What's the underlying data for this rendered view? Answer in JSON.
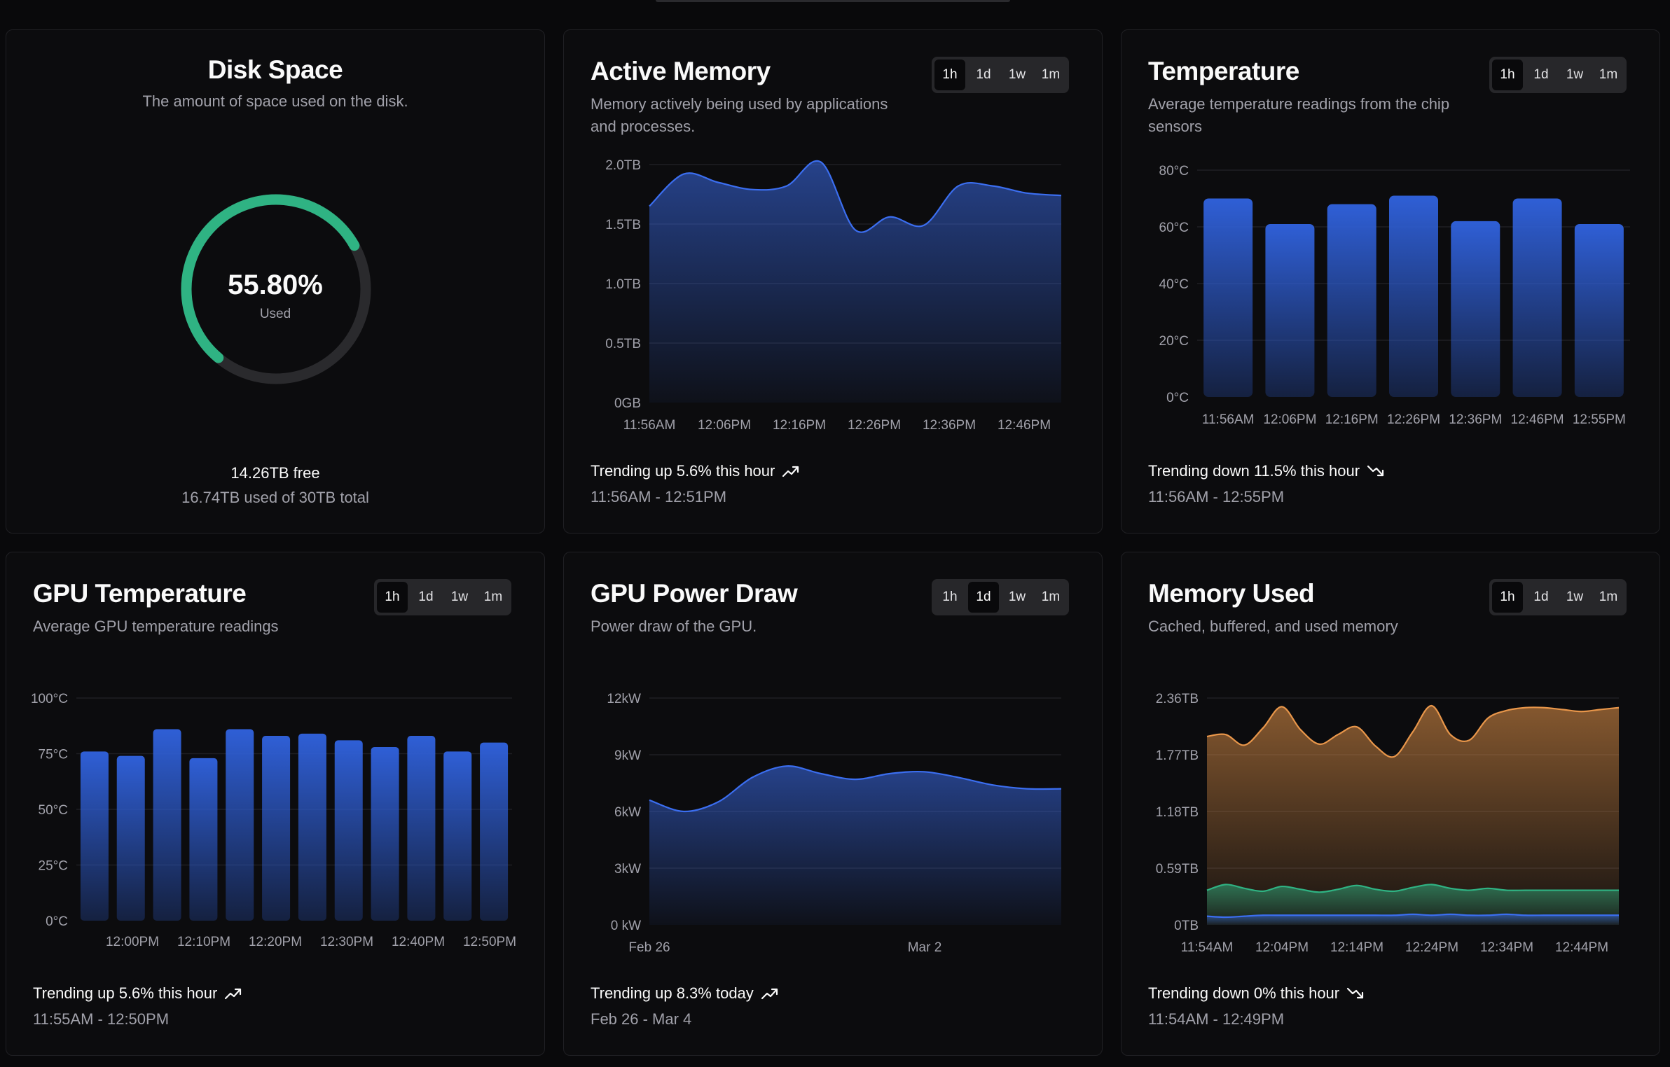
{
  "ranges": [
    "1h",
    "1d",
    "1w",
    "1m"
  ],
  "disk": {
    "title": "Disk Space",
    "description": "The amount of space used on the disk.",
    "percent_label": "55.80%",
    "percent_value": 55.8,
    "used_label": "Used",
    "free_label": "14.26TB free",
    "used_total_label": "16.74TB used of 30TB total",
    "colors": {
      "used": "#2fb383",
      "track": "#2a2a2d"
    }
  },
  "active_memory": {
    "title": "Active Memory",
    "description_lines": [
      "Memory actively being used by applications",
      "and processes."
    ],
    "active_range": "1h",
    "trend": "Trending up 5.6% this hour",
    "trend_icon": "trending-up-icon",
    "range_text": "11:56AM - 12:51PM"
  },
  "temperature": {
    "title": "Temperature",
    "description_lines": [
      "Average temperature readings from the chip",
      "sensors"
    ],
    "active_range": "1h",
    "trend": "Trending down 11.5% this hour",
    "trend_icon": "trending-down-icon",
    "range_text": "11:56AM - 12:55PM"
  },
  "gpu_temperature": {
    "title": "GPU Temperature",
    "description_lines": [
      "Average GPU temperature readings"
    ],
    "active_range": "1h",
    "trend": "Trending up 5.6% this hour",
    "trend_icon": "trending-up-icon",
    "range_text": "11:55AM - 12:50PM"
  },
  "gpu_power": {
    "title": "GPU Power Draw",
    "description_lines": [
      "Power draw of the GPU."
    ],
    "active_range": "1d",
    "trend": "Trending up 8.3% today",
    "trend_icon": "trending-up-icon",
    "range_text": "Feb 26 - Mar 4"
  },
  "memory_used": {
    "title": "Memory Used",
    "description_lines": [
      "Cached, buffered, and used memory"
    ],
    "active_range": "1h",
    "trend": "Trending down 0% this hour",
    "trend_icon": "trending-down-icon",
    "range_text": "11:54AM - 12:49PM"
  },
  "colors": {
    "blue": "#2f5fd6",
    "blue_line": "#3b6ef0",
    "orange": "#e8964a",
    "green": "#2fb383",
    "grid": "#1f1f23"
  },
  "chart_data": [
    {
      "id": "active_memory",
      "type": "area",
      "y_ticks": [
        "0GB",
        "0.5TB",
        "1.0TB",
        "1.5TB",
        "2.0TB"
      ],
      "ylim": [
        0,
        2.0
      ],
      "x_ticks": [
        "11:56AM",
        "12:06PM",
        "12:16PM",
        "12:26PM",
        "12:36PM",
        "12:46PM"
      ],
      "x": [
        0,
        1,
        2,
        3,
        4,
        5,
        6,
        7,
        8,
        9,
        10,
        11,
        12
      ],
      "values": [
        1.65,
        1.92,
        1.85,
        1.79,
        1.82,
        2.02,
        1.45,
        1.56,
        1.49,
        1.82,
        1.82,
        1.76,
        1.74
      ],
      "xlim": [
        0,
        12
      ]
    },
    {
      "id": "temperature",
      "type": "bar",
      "y_ticks": [
        "0°C",
        "20°C",
        "40°C",
        "60°C",
        "80°C"
      ],
      "ylim": [
        0,
        80
      ],
      "categories": [
        "11:56AM",
        "12:06PM",
        "12:16PM",
        "12:26PM",
        "12:36PM",
        "12:46PM",
        "12:55PM"
      ],
      "values": [
        70,
        61,
        68,
        71,
        62,
        70,
        61
      ]
    },
    {
      "id": "gpu_temperature",
      "type": "bar",
      "y_ticks": [
        "0°C",
        "25°C",
        "50°C",
        "75°C",
        "100°C"
      ],
      "ylim": [
        0,
        100
      ],
      "x_ticks": [
        "12:00PM",
        "12:10PM",
        "12:20PM",
        "12:30PM",
        "12:40PM",
        "12:50PM"
      ],
      "values": [
        76,
        74,
        86,
        73,
        86,
        83,
        84,
        81,
        78,
        83,
        76,
        80
      ]
    },
    {
      "id": "gpu_power",
      "type": "area",
      "y_ticks": [
        "0 kW",
        "3kW",
        "6kW",
        "9kW",
        "12kW"
      ],
      "ylim": [
        0,
        12
      ],
      "x_ticks": [
        "Feb 26",
        "Mar 2"
      ],
      "x": [
        0,
        0.5,
        1,
        1.5,
        2,
        2.5,
        3,
        3.5,
        4,
        4.5,
        5,
        5.5,
        6
      ],
      "values": [
        6.6,
        6.0,
        6.5,
        7.8,
        8.4,
        8.0,
        7.7,
        8.0,
        8.1,
        7.8,
        7.4,
        7.2,
        7.2
      ],
      "xlim": [
        0,
        6
      ]
    },
    {
      "id": "memory_used",
      "type": "area",
      "y_ticks": [
        "0TB",
        "0.59TB",
        "1.18TB",
        "1.77TB",
        "2.36TB"
      ],
      "ylim": [
        0,
        2.36
      ],
      "x_ticks": [
        "11:54AM",
        "12:04PM",
        "12:14PM",
        "12:24PM",
        "12:34PM",
        "12:44PM"
      ],
      "x": [
        0,
        1,
        2,
        3,
        4,
        5,
        6,
        7,
        8,
        9,
        10,
        11,
        12,
        13,
        14,
        15,
        16,
        17,
        18,
        19,
        20,
        21,
        22
      ],
      "xlim": [
        0,
        22
      ],
      "series": [
        {
          "color": "#e8964a",
          "values": [
            1.96,
            1.98,
            1.87,
            2.05,
            2.27,
            2.03,
            1.88,
            1.98,
            2.06,
            1.86,
            1.75,
            2.01,
            2.28,
            1.98,
            1.92,
            2.15,
            2.23,
            2.26,
            2.26,
            2.24,
            2.22,
            2.24,
            2.26
          ]
        },
        {
          "color": "#2fb383",
          "values": [
            0.36,
            0.42,
            0.38,
            0.35,
            0.4,
            0.37,
            0.34,
            0.37,
            0.41,
            0.37,
            0.35,
            0.39,
            0.42,
            0.38,
            0.36,
            0.38,
            0.36,
            0.36,
            0.36,
            0.36,
            0.36,
            0.36,
            0.36
          ]
        },
        {
          "color": "#3b6ef0",
          "values": [
            0.09,
            0.08,
            0.09,
            0.1,
            0.1,
            0.1,
            0.1,
            0.1,
            0.1,
            0.1,
            0.1,
            0.11,
            0.1,
            0.11,
            0.1,
            0.1,
            0.11,
            0.1,
            0.1,
            0.1,
            0.1,
            0.1,
            0.1
          ]
        }
      ]
    }
  ]
}
